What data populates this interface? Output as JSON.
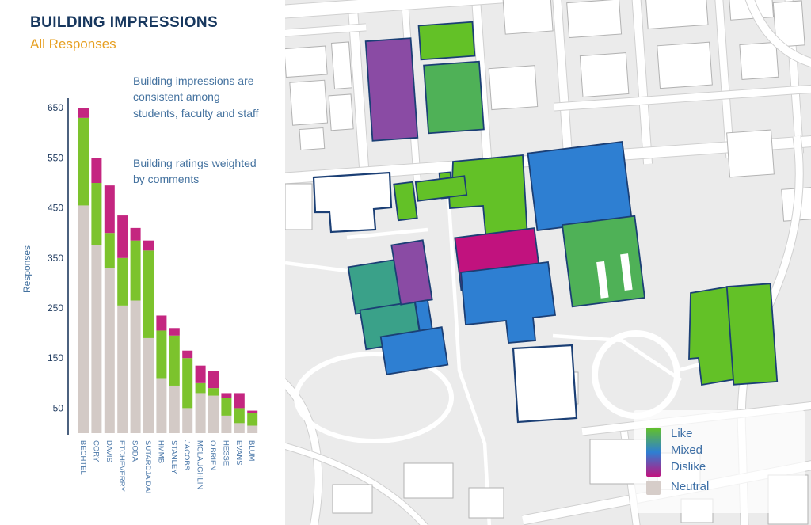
{
  "header": {
    "title": "BUILDING IMPRESSIONS",
    "subtitle": "All Responses"
  },
  "annotations": {
    "para1": "Building impressions are consistent among students, faculty and staff",
    "para2": "Building ratings weighted by comments"
  },
  "chart_data": {
    "type": "bar",
    "stacked": true,
    "title": "",
    "xlabel": "",
    "ylabel": "Responses",
    "ylim": [
      0,
      680
    ],
    "yticks": [
      50,
      150,
      250,
      350,
      450,
      550,
      650
    ],
    "grid": false,
    "legend_position": "map-bottom-right",
    "categories": [
      "BECHTEL",
      "CORY",
      "DAVIS",
      "ETCHEVERRY",
      "SODA",
      "SUTARDJA DAI",
      "HMMB",
      "STANLEY",
      "JACOBS",
      "MCLAUGHLIN",
      "O'BRIEN",
      "HESSE",
      "EVANS",
      "BLUM"
    ],
    "series": [
      {
        "name": "Neutral",
        "color_key": "neutral",
        "values": [
          455,
          375,
          330,
          255,
          265,
          190,
          110,
          95,
          50,
          80,
          75,
          35,
          20,
          15
        ]
      },
      {
        "name": "Like",
        "color_key": "like",
        "values": [
          175,
          125,
          70,
          95,
          120,
          175,
          95,
          100,
          100,
          20,
          15,
          35,
          30,
          25
        ]
      },
      {
        "name": "Dislike",
        "color_key": "dislike",
        "values": [
          20,
          50,
          95,
          85,
          25,
          20,
          30,
          15,
          15,
          35,
          35,
          10,
          30,
          5
        ]
      }
    ]
  },
  "legend": {
    "items": [
      {
        "label": "Like"
      },
      {
        "label": "Mixed"
      },
      {
        "label": "Dislike"
      },
      {
        "label": "Neutral"
      }
    ]
  },
  "palette": {
    "title_navy": "#17375e",
    "subtitle_orange": "#e7a022",
    "text_blue": "#44729f",
    "axis_navy": "#1f3a5f",
    "xlabel_blue": "#4a77a8",
    "bar_neutral": "#d3cac6",
    "bar_like": "#7cc32d",
    "bar_dislike": "#c42680",
    "map_bg": "#ebebeb",
    "street_casing": "#d0d0d0",
    "footprint_stroke": "#b2b2b2",
    "outline": "#1b3f75",
    "legend_text": "#3c6ea5",
    "ratings": {
      "like": "#63c127",
      "like-mixed": "#4fb157",
      "mixed-like": "#3aa189",
      "mixed": "#2e7fd2",
      "mixed-dislike": "#8a4ba4",
      "dislike": "#c1127e",
      "neutral": "#d6cdc9"
    }
  },
  "map": {
    "buildings": [
      {
        "id": "purple-north",
        "rating": "mixed-dislike"
      },
      {
        "id": "green-north-small",
        "rating": "like"
      },
      {
        "id": "green-north-large",
        "rating": "like-mixed"
      },
      {
        "id": "cory-annex",
        "rating": "like"
      },
      {
        "id": "cory-main",
        "rating": "like"
      },
      {
        "id": "blue-northeast",
        "rating": "mixed"
      },
      {
        "id": "green-center-small-v",
        "rating": "like"
      },
      {
        "id": "green-center-small-h",
        "rating": "like"
      },
      {
        "id": "magenta-central",
        "rating": "dislike"
      },
      {
        "id": "blue-central",
        "rating": "mixed"
      },
      {
        "id": "green-slotted",
        "rating": "like-mixed"
      },
      {
        "id": "teal-upper",
        "rating": "mixed-like"
      },
      {
        "id": "teal-lower",
        "rating": "mixed-like"
      },
      {
        "id": "purple-strip",
        "rating": "mixed-dislike"
      },
      {
        "id": "blue-strip",
        "rating": "mixed"
      },
      {
        "id": "blue-south",
        "rating": "mixed"
      },
      {
        "id": "green-east-a",
        "rating": "like"
      },
      {
        "id": "green-east-b",
        "rating": "like"
      }
    ]
  }
}
